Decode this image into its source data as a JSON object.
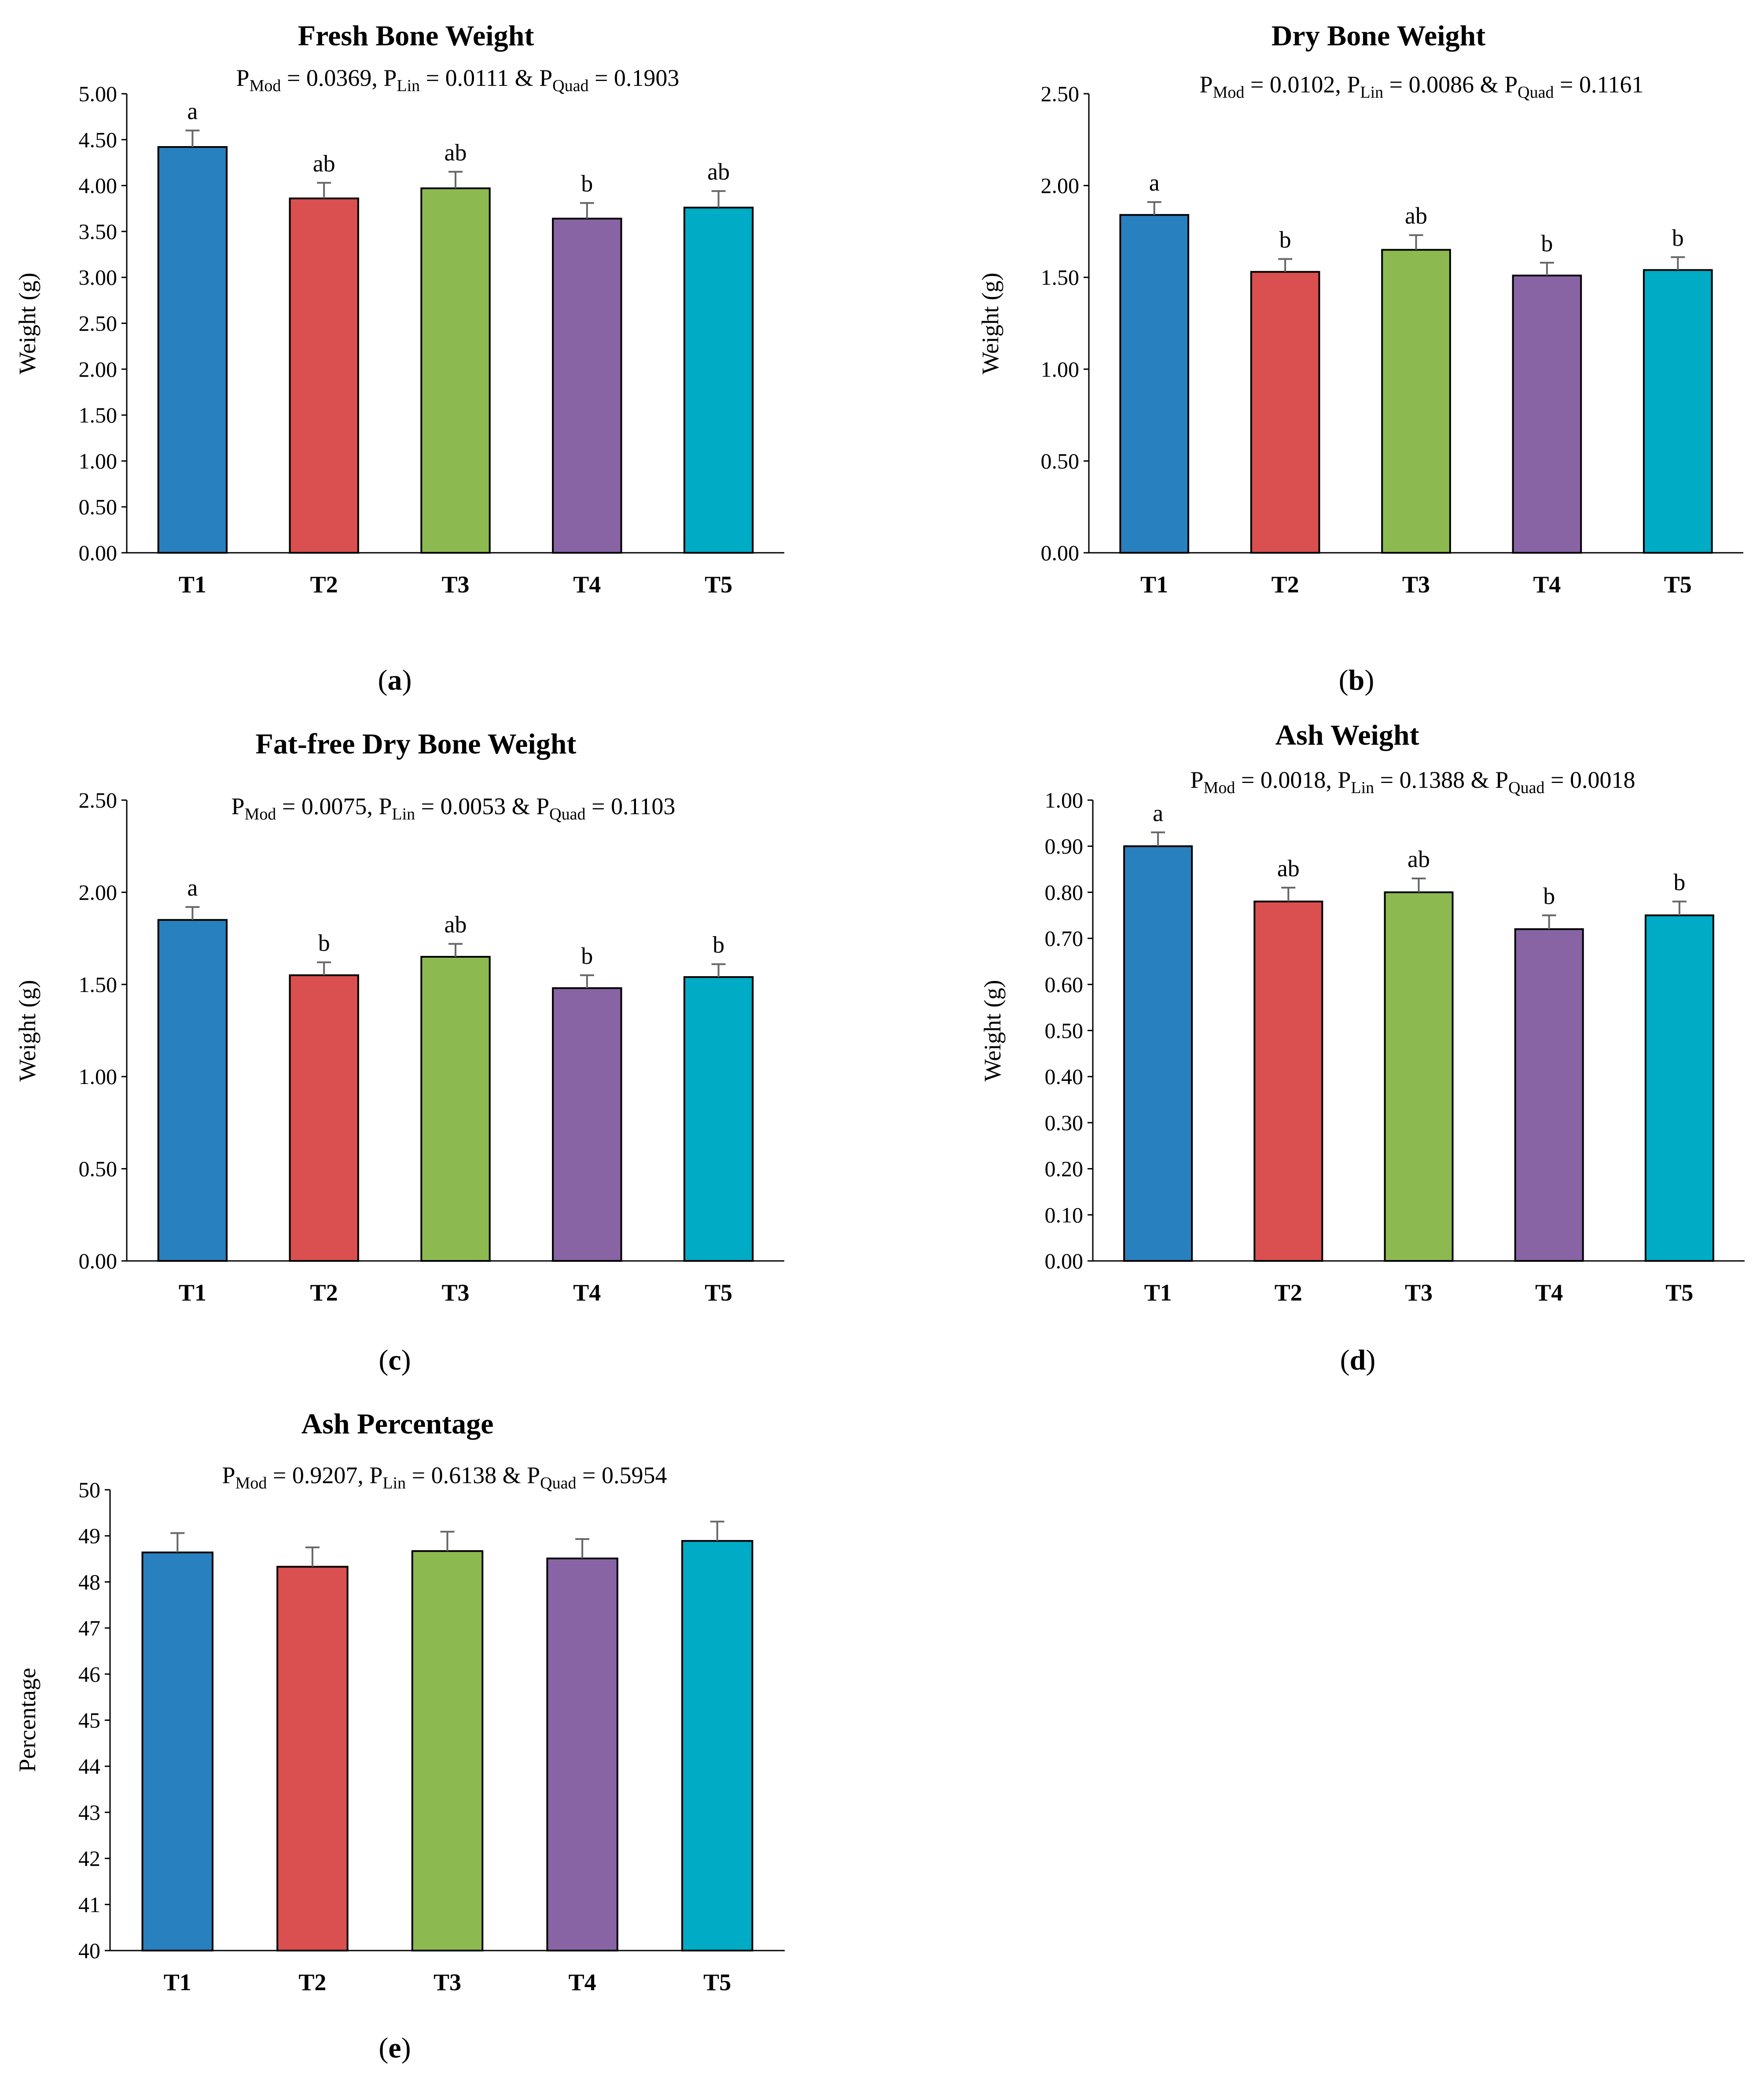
{
  "figure": {
    "panels": [
      {
        "caption_letter": "a",
        "pvalue": {
          "p_mod": "0.0369",
          "p_lin": "0.0111",
          "p_quad": "0.1903"
        },
        "chart_data": {
          "type": "bar",
          "title": "Fresh Bone Weight",
          "xlabel": "",
          "ylabel": "Weight (g)",
          "categories": [
            "T1",
            "T2",
            "T3",
            "T4",
            "T5"
          ],
          "values": [
            4.42,
            3.86,
            3.97,
            3.64,
            3.76
          ],
          "errors": [
            0.18,
            0.17,
            0.18,
            0.17,
            0.18
          ],
          "significance": [
            "a",
            "ab",
            "ab",
            "b",
            "ab"
          ],
          "ylim": [
            0,
            5
          ],
          "yticks": [
            "0.00",
            "0.50",
            "1.00",
            "1.50",
            "2.00",
            "2.50",
            "3.00",
            "3.50",
            "4.00",
            "4.50",
            "5.00"
          ],
          "colors": [
            "#2880BE",
            "#DA4F4F",
            "#8CBA50",
            "#8864A4",
            "#00ABC6"
          ],
          "grid": false
        }
      },
      {
        "caption_letter": "b",
        "pvalue": {
          "p_mod": "0.0102",
          "p_lin": "0.0086",
          "p_quad": "0.1161"
        },
        "chart_data": {
          "type": "bar",
          "title": "Dry Bone Weight",
          "xlabel": "",
          "ylabel": "Weight (g)",
          "categories": [
            "T1",
            "T2",
            "T3",
            "T4",
            "T5"
          ],
          "values": [
            1.84,
            1.53,
            1.65,
            1.51,
            1.54
          ],
          "errors": [
            0.07,
            0.07,
            0.08,
            0.07,
            0.07
          ],
          "significance": [
            "a",
            "b",
            "ab",
            "b",
            "b"
          ],
          "ylim": [
            0,
            2.5
          ],
          "yticks": [
            "0.00",
            "0.50",
            "1.00",
            "1.50",
            "2.00",
            "2.50"
          ],
          "colors": [
            "#2880BE",
            "#DA4F4F",
            "#8CBA50",
            "#8864A4",
            "#00ABC6"
          ],
          "grid": false
        }
      },
      {
        "caption_letter": "c",
        "pvalue": {
          "p_mod": "0.0075",
          "p_lin": "0.0053",
          "p_quad": "0.1103"
        },
        "chart_data": {
          "type": "bar",
          "title": "Fat-free Dry Bone Weight",
          "xlabel": "",
          "ylabel": "Weight (g)",
          "categories": [
            "T1",
            "T2",
            "T3",
            "T4",
            "T5"
          ],
          "values": [
            1.85,
            1.55,
            1.65,
            1.48,
            1.54
          ],
          "errors": [
            0.07,
            0.07,
            0.07,
            0.07,
            0.07
          ],
          "significance": [
            "a",
            "b",
            "ab",
            "b",
            "b"
          ],
          "ylim": [
            0,
            2.5
          ],
          "yticks": [
            "0.00",
            "0.50",
            "1.00",
            "1.50",
            "2.00",
            "2.50"
          ],
          "colors": [
            "#2880BE",
            "#DA4F4F",
            "#8CBA50",
            "#8864A4",
            "#00ABC6"
          ],
          "grid": false
        }
      },
      {
        "caption_letter": "d",
        "pvalue": {
          "p_mod": "0.0018",
          "p_lin": "0.1388",
          "p_quad": "0.0018"
        },
        "chart_data": {
          "type": "bar",
          "title": "Ash Weight",
          "xlabel": "",
          "ylabel": "Weight (g)",
          "categories": [
            "T1",
            "T2",
            "T3",
            "T4",
            "T5"
          ],
          "values": [
            0.9,
            0.78,
            0.8,
            0.72,
            0.75
          ],
          "errors": [
            0.03,
            0.03,
            0.03,
            0.03,
            0.03
          ],
          "significance": [
            "a",
            "ab",
            "ab",
            "b",
            "b"
          ],
          "ylim": [
            0,
            1
          ],
          "yticks": [
            "0.00",
            "0.10",
            "0.20",
            "0.30",
            "0.40",
            "0.50",
            "0.60",
            "0.70",
            "0.80",
            "0.90",
            "1.00"
          ],
          "colors": [
            "#2880BE",
            "#DA4F4F",
            "#8CBA50",
            "#8864A4",
            "#00ABC6"
          ],
          "grid": false
        }
      },
      {
        "caption_letter": "e",
        "pvalue": {
          "p_mod": "0.9207",
          "p_lin": "0.6138",
          "p_quad": "0.5954"
        },
        "chart_data": {
          "type": "bar",
          "title": "Ash Percentage",
          "xlabel": "",
          "ylabel": "Percentage",
          "categories": [
            "T1",
            "T2",
            "T3",
            "T4",
            "T5"
          ],
          "values": [
            48.64,
            48.33,
            48.67,
            48.51,
            48.89
          ],
          "errors": [
            0.42,
            0.42,
            0.42,
            0.42,
            0.42
          ],
          "significance": [
            "",
            "",
            "",
            "",
            ""
          ],
          "ylim": [
            40,
            50
          ],
          "yticks": [
            "40",
            "41",
            "42",
            "43",
            "44",
            "45",
            "46",
            "47",
            "48",
            "49",
            "50"
          ],
          "colors": [
            "#2880BE",
            "#DA4F4F",
            "#8CBA50",
            "#8864A4",
            "#00ABC6"
          ],
          "grid": false
        }
      }
    ]
  }
}
